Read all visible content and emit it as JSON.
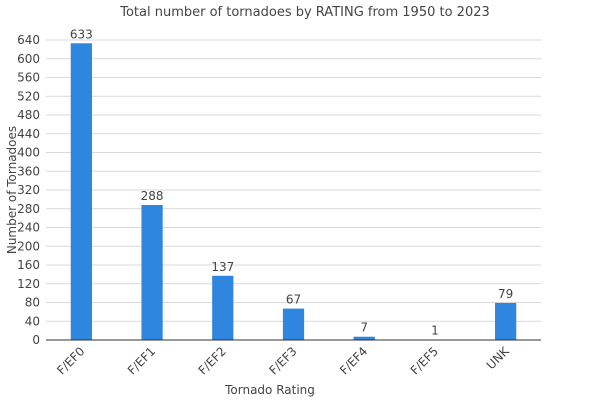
{
  "chart_data": {
    "type": "bar",
    "title": "Total number of tornadoes by RATING from 1950 to 2023",
    "xlabel": "Tornado Rating",
    "ylabel": "Number of Tornadoes",
    "categories": [
      "F/EF0",
      "F/EF1",
      "F/EF2",
      "F/EF3",
      "F/EF4",
      "F/EF5",
      "UNK"
    ],
    "values": [
      633,
      288,
      137,
      67,
      7,
      1,
      79
    ],
    "value_labels": [
      "633",
      "288",
      "137",
      "67",
      "7",
      "1",
      "79"
    ],
    "ylim": [
      0,
      640
    ],
    "yticks": [
      0,
      40,
      80,
      120,
      160,
      200,
      240,
      280,
      320,
      360,
      400,
      440,
      480,
      520,
      560,
      600,
      640
    ],
    "grid": true,
    "legend": "none",
    "bar_color": "#2e86de",
    "grid_color": "#d9d9d9",
    "axis_color": "#333333"
  }
}
